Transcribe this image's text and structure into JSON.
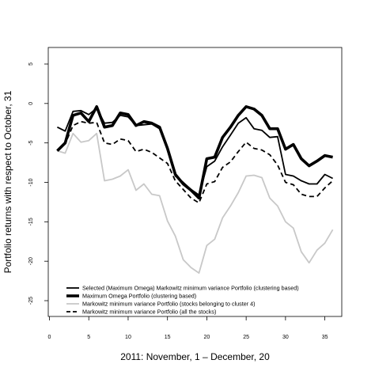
{
  "chart_data": {
    "type": "line",
    "title": "",
    "xlabel": "2011: November, 1 – December, 20",
    "ylabel": "Portfolio returns with respect to October, 31",
    "xlim": [
      0,
      37
    ],
    "ylim": [
      -26,
      6
    ],
    "xticks": [
      0,
      5,
      10,
      15,
      20,
      25,
      30,
      35
    ],
    "yticks": [
      5,
      0,
      -5,
      -10,
      -15,
      -20,
      -25
    ],
    "grid": false,
    "legend_position": "bottom-left",
    "x": [
      1,
      2,
      3,
      4,
      5,
      6,
      7,
      8,
      9,
      10,
      11,
      12,
      13,
      14,
      15,
      16,
      17,
      18,
      19,
      20,
      21,
      22,
      23,
      24,
      25,
      26,
      27,
      28,
      29,
      30,
      31,
      32,
      33,
      34,
      35,
      36
    ],
    "series": [
      {
        "name": "Selected (Maximum Omega) Markowitz minimum variance Portfolio (clustering based)",
        "style": "solid",
        "color": "#000000",
        "width": "medium",
        "values": [
          -3.0,
          -3.5,
          -1.0,
          -0.9,
          -1.4,
          -0.6,
          -2.5,
          -2.4,
          -1.5,
          -1.7,
          -2.8,
          -2.7,
          -2.6,
          -3.2,
          -5.8,
          -9.2,
          -10.0,
          -10.9,
          -11.6,
          -8.0,
          -7.3,
          -5.5,
          -4.0,
          -2.5,
          -1.8,
          -3.2,
          -3.4,
          -4.3,
          -4.2,
          -9.0,
          -9.2,
          -9.8,
          -10.2,
          -10.2,
          -9.0,
          -9.5
        ]
      },
      {
        "name": "Maximum Omega Portfolio (clustering based)",
        "style": "solid",
        "color": "#000000",
        "width": "thick",
        "values": [
          -6.0,
          -5.0,
          -1.5,
          -1.2,
          -2.3,
          -0.4,
          -3.0,
          -2.8,
          -1.2,
          -1.4,
          -2.8,
          -2.3,
          -2.5,
          -3.0,
          -5.7,
          -9.0,
          -10.2,
          -11.0,
          -12.0,
          -7.0,
          -6.8,
          -4.3,
          -3.0,
          -1.5,
          -0.4,
          -0.7,
          -1.5,
          -3.2,
          -3.2,
          -5.8,
          -5.2,
          -7.0,
          -7.9,
          -7.3,
          -6.6,
          -6.8
        ]
      },
      {
        "name": "Markowitz minimum variance Portfolio (stocks belonging to cluster 4)",
        "style": "solid",
        "color": "#c8c8c8",
        "width": "medium",
        "values": [
          -6.0,
          -6.3,
          -3.8,
          -4.9,
          -4.7,
          -3.8,
          -9.8,
          -9.6,
          -9.2,
          -8.4,
          -11.0,
          -10.2,
          -11.5,
          -11.7,
          -14.9,
          -16.8,
          -19.8,
          -20.8,
          -21.5,
          -18.0,
          -17.2,
          -14.5,
          -13.0,
          -11.3,
          -9.2,
          -9.1,
          -9.4,
          -12.0,
          -13.0,
          -15.0,
          -15.8,
          -18.8,
          -20.2,
          -18.6,
          -17.7,
          -16.0
        ]
      },
      {
        "name": "Markowitz minimum variance Portfolio (all the stocks)",
        "style": "dashed",
        "color": "#000000",
        "width": "medium",
        "values": [
          -6.0,
          -5.1,
          -2.8,
          -2.3,
          -2.5,
          -2.4,
          -5.0,
          -5.2,
          -4.5,
          -4.7,
          -6.1,
          -5.8,
          -6.2,
          -6.9,
          -7.6,
          -9.8,
          -10.9,
          -12.0,
          -12.6,
          -10.2,
          -9.9,
          -8.1,
          -7.4,
          -6.1,
          -4.9,
          -5.7,
          -5.9,
          -6.5,
          -7.8,
          -10.0,
          -10.3,
          -11.5,
          -11.8,
          -11.8,
          -10.7,
          -9.8
        ]
      }
    ]
  }
}
